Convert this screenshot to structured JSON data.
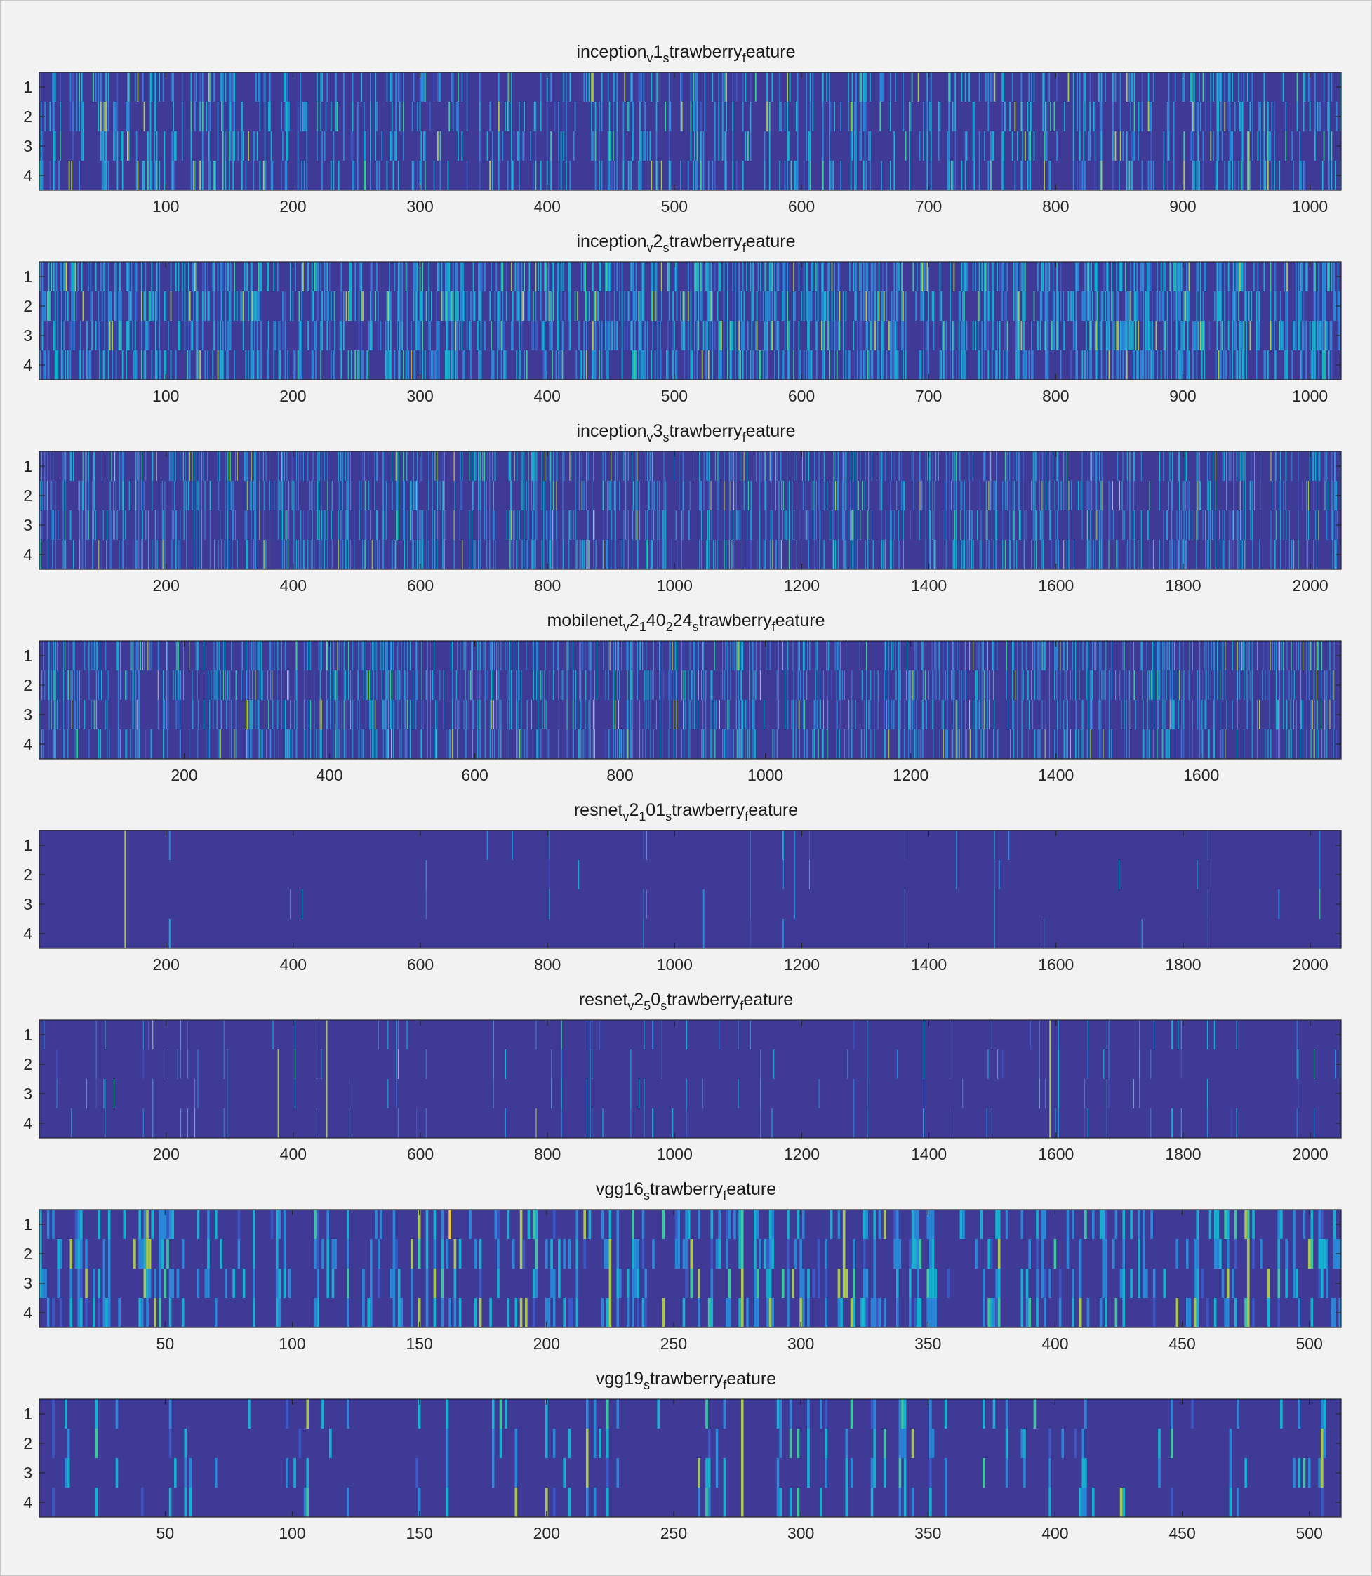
{
  "colors": {
    "background": "#f2f2f2",
    "colormap": [
      "#3e3a96",
      "#3a58c7",
      "#2a86d6",
      "#15b1cf",
      "#3ec79e",
      "#a9c650",
      "#f2c634"
    ]
  },
  "chart_data": [
    {
      "type": "heatmap",
      "title": "inception_v1_strawberry_feature",
      "title_parts": [
        [
          "inception",
          ""
        ],
        [
          "v",
          "sub"
        ],
        [
          "1",
          ""
        ],
        [
          "s",
          "sub"
        ],
        [
          "trawberry",
          ""
        ],
        [
          "f",
          "sub"
        ],
        [
          "eature",
          ""
        ]
      ],
      "rows": 4,
      "cols": 1024,
      "xlim": [
        0.5,
        1024.5
      ],
      "xticks": [
        100,
        200,
        300,
        400,
        500,
        600,
        700,
        800,
        900,
        1000
      ],
      "xtick_labels": [
        "100",
        "200",
        "300",
        "400",
        "500",
        "600",
        "700",
        "800",
        "900",
        "1000"
      ],
      "yticks": [
        1,
        2,
        3,
        4
      ],
      "ytick_labels": [
        "1",
        "2",
        "3",
        "4"
      ],
      "activity": 0.18,
      "seed": 11
    },
    {
      "type": "heatmap",
      "title": "inception_v2_strawberry_feature",
      "title_parts": [
        [
          "inception",
          ""
        ],
        [
          "v",
          "sub"
        ],
        [
          "2",
          ""
        ],
        [
          "s",
          "sub"
        ],
        [
          "trawberry",
          ""
        ],
        [
          "f",
          "sub"
        ],
        [
          "eature",
          ""
        ]
      ],
      "rows": 4,
      "cols": 1024,
      "xlim": [
        0.5,
        1024.5
      ],
      "xticks": [
        100,
        200,
        300,
        400,
        500,
        600,
        700,
        800,
        900,
        1000
      ],
      "xtick_labels": [
        "100",
        "200",
        "300",
        "400",
        "500",
        "600",
        "700",
        "800",
        "900",
        "1000"
      ],
      "yticks": [
        1,
        2,
        3,
        4
      ],
      "ytick_labels": [
        "1",
        "2",
        "3",
        "4"
      ],
      "activity": 0.32,
      "seed": 23
    },
    {
      "type": "heatmap",
      "title": "inception_v3_strawberry_feature",
      "title_parts": [
        [
          "inception",
          ""
        ],
        [
          "v",
          "sub"
        ],
        [
          "3",
          ""
        ],
        [
          "s",
          "sub"
        ],
        [
          "trawberry",
          ""
        ],
        [
          "f",
          "sub"
        ],
        [
          "eature",
          ""
        ]
      ],
      "rows": 4,
      "cols": 2048,
      "xlim": [
        0.5,
        2048.5
      ],
      "xticks": [
        200,
        400,
        600,
        800,
        1000,
        1200,
        1400,
        1600,
        1800,
        2000
      ],
      "xtick_labels": [
        "200",
        "400",
        "600",
        "800",
        "1000",
        "1200",
        "1400",
        "1600",
        "1800",
        "2000"
      ],
      "yticks": [
        1,
        2,
        3,
        4
      ],
      "ytick_labels": [
        "1",
        "2",
        "3",
        "4"
      ],
      "activity": 0.16,
      "seed": 37
    },
    {
      "type": "heatmap",
      "title": "mobilenet_v2_140_224_strawberry_feature",
      "title_parts": [
        [
          "mobilenet",
          ""
        ],
        [
          "v",
          "sub"
        ],
        [
          "2",
          ""
        ],
        [
          "1",
          "sub"
        ],
        [
          "40",
          ""
        ],
        [
          "2",
          "sub"
        ],
        [
          "24",
          ""
        ],
        [
          "s",
          "sub"
        ],
        [
          "trawberry",
          ""
        ],
        [
          "f",
          "sub"
        ],
        [
          "eature",
          ""
        ]
      ],
      "rows": 4,
      "cols": 1792,
      "xlim": [
        0.5,
        1792.5
      ],
      "xticks": [
        200,
        400,
        600,
        800,
        1000,
        1200,
        1400,
        1600
      ],
      "xtick_labels": [
        "200",
        "400",
        "600",
        "800",
        "1000",
        "1200",
        "1400",
        "1600"
      ],
      "yticks": [
        1,
        2,
        3,
        4
      ],
      "ytick_labels": [
        "1",
        "2",
        "3",
        "4"
      ],
      "activity": 0.2,
      "seed": 41
    },
    {
      "type": "heatmap",
      "title": "resnet_v2_101_strawberry_feature",
      "title_parts": [
        [
          "resnet",
          ""
        ],
        [
          "v",
          "sub"
        ],
        [
          "2",
          ""
        ],
        [
          "1",
          "sub"
        ],
        [
          "01",
          ""
        ],
        [
          "s",
          "sub"
        ],
        [
          "trawberry",
          ""
        ],
        [
          "f",
          "sub"
        ],
        [
          "eature",
          ""
        ]
      ],
      "rows": 4,
      "cols": 2048,
      "xlim": [
        0.5,
        2048.5
      ],
      "xticks": [
        200,
        400,
        600,
        800,
        1000,
        1200,
        1400,
        1600,
        1800,
        2000
      ],
      "xtick_labels": [
        "200",
        "400",
        "600",
        "800",
        "1000",
        "1200",
        "1400",
        "1600",
        "1800",
        "2000"
      ],
      "yticks": [
        1,
        2,
        3,
        4
      ],
      "ytick_labels": [
        "1",
        "2",
        "3",
        "4"
      ],
      "activity": 0.004,
      "seed": 53,
      "highlights": [
        [
          135,
          1,
          0.82
        ],
        [
          135,
          2,
          0.78
        ],
        [
          135,
          3,
          0.8
        ],
        [
          135,
          4,
          0.85
        ],
        [
          205,
          1,
          0.4
        ],
        [
          205,
          4,
          0.42
        ],
        [
          705,
          1,
          0.36
        ],
        [
          1045,
          3,
          0.4
        ],
        [
          1045,
          4,
          0.38
        ],
        [
          1170,
          1,
          0.42
        ],
        [
          1170,
          4,
          0.4
        ],
        [
          1510,
          2,
          0.34
        ],
        [
          1525,
          1,
          0.3
        ],
        [
          1950,
          3,
          0.3
        ]
      ]
    },
    {
      "type": "heatmap",
      "title": "resnet_v2_50_strawberry_feature",
      "title_parts": [
        [
          "resnet",
          ""
        ],
        [
          "v",
          "sub"
        ],
        [
          "2",
          ""
        ],
        [
          "5",
          "sub"
        ],
        [
          "0",
          ""
        ],
        [
          "s",
          "sub"
        ],
        [
          "trawberry",
          ""
        ],
        [
          "f",
          "sub"
        ],
        [
          "eature",
          ""
        ]
      ],
      "rows": 4,
      "cols": 2048,
      "xlim": [
        0.5,
        2048.5
      ],
      "xticks": [
        200,
        400,
        600,
        800,
        1000,
        1200,
        1400,
        1600,
        1800,
        2000
      ],
      "xtick_labels": [
        "200",
        "400",
        "600",
        "800",
        "1000",
        "1200",
        "1400",
        "1600",
        "1800",
        "2000"
      ],
      "yticks": [
        1,
        2,
        3,
        4
      ],
      "ytick_labels": [
        "1",
        "2",
        "3",
        "4"
      ],
      "activity": 0.018,
      "seed": 67,
      "highlights": [
        [
          376,
          2,
          0.82
        ],
        [
          376,
          3,
          0.82
        ],
        [
          376,
          4,
          0.86
        ],
        [
          452,
          1,
          0.84
        ],
        [
          452,
          2,
          0.8
        ],
        [
          452,
          3,
          0.82
        ],
        [
          452,
          4,
          0.86
        ],
        [
          1590,
          1,
          0.86
        ],
        [
          1590,
          2,
          0.84
        ],
        [
          1590,
          3,
          0.82
        ],
        [
          1590,
          4,
          0.86
        ],
        [
          1782,
          1,
          0.5
        ],
        [
          1782,
          4,
          0.5
        ],
        [
          965,
          1,
          0.4
        ],
        [
          965,
          4,
          0.42
        ]
      ]
    },
    {
      "type": "heatmap",
      "title": "vgg16_strawberry_feature",
      "title_parts": [
        [
          "vgg16",
          ""
        ],
        [
          "s",
          "sub"
        ],
        [
          "trawberry",
          ""
        ],
        [
          "f",
          "sub"
        ],
        [
          "eature",
          ""
        ]
      ],
      "rows": 4,
      "cols": 512,
      "xlim": [
        0.5,
        512.5
      ],
      "xticks": [
        50,
        100,
        150,
        200,
        250,
        300,
        350,
        400,
        450,
        500
      ],
      "xtick_labels": [
        "50",
        "100",
        "150",
        "200",
        "250",
        "300",
        "350",
        "400",
        "450",
        "500"
      ],
      "yticks": [
        1,
        2,
        3,
        4
      ],
      "ytick_labels": [
        "1",
        "2",
        "3",
        "4"
      ],
      "activity": 0.2,
      "seed": 79,
      "highlights": [
        [
          150,
          1,
          0.8
        ],
        [
          150,
          2,
          0.6
        ],
        [
          150,
          4,
          0.9
        ],
        [
          225,
          2,
          0.8
        ],
        [
          225,
          3,
          0.85
        ],
        [
          225,
          4,
          0.88
        ],
        [
          277,
          3,
          0.85
        ],
        [
          277,
          4,
          0.9
        ],
        [
          317,
          1,
          0.8
        ],
        [
          317,
          2,
          0.86
        ],
        [
          317,
          3,
          0.9
        ],
        [
          318,
          3,
          0.82
        ],
        [
          476,
          2,
          0.8
        ],
        [
          476,
          3,
          0.86
        ],
        [
          476,
          4,
          0.9
        ],
        [
          500,
          2,
          0.88
        ]
      ]
    },
    {
      "type": "heatmap",
      "title": "vgg19_strawberry_feature",
      "title_parts": [
        [
          "vgg19",
          ""
        ],
        [
          "s",
          "sub"
        ],
        [
          "trawberry",
          ""
        ],
        [
          "f",
          "sub"
        ],
        [
          "eature",
          ""
        ]
      ],
      "rows": 4,
      "cols": 512,
      "xlim": [
        0.5,
        512.5
      ],
      "xticks": [
        50,
        100,
        150,
        200,
        250,
        300,
        350,
        400,
        450,
        500
      ],
      "xtick_labels": [
        "50",
        "100",
        "150",
        "200",
        "250",
        "300",
        "350",
        "400",
        "450",
        "500"
      ],
      "yticks": [
        1,
        2,
        3,
        4
      ],
      "ytick_labels": [
        "1",
        "2",
        "3",
        "4"
      ],
      "activity": 0.07,
      "seed": 97,
      "highlights": [
        [
          277,
          1,
          0.88
        ],
        [
          277,
          2,
          0.85
        ],
        [
          277,
          3,
          0.86
        ],
        [
          277,
          4,
          0.9
        ],
        [
          299,
          2,
          0.6
        ],
        [
          299,
          4,
          0.6
        ]
      ]
    }
  ]
}
